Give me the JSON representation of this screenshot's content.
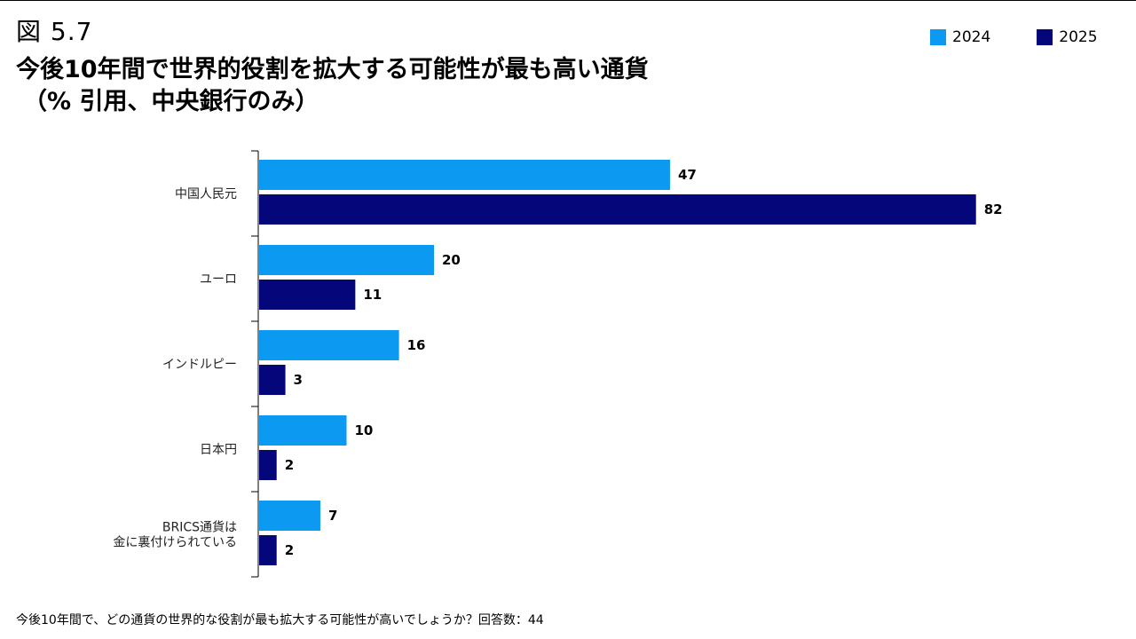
{
  "figure_label": "図 5.7",
  "title_line1": "今後10年間で世界的役割を拡大する可能性が最も高い通貨",
  "title_line2": "（% 引用、中央銀行のみ）",
  "footnote": "今後10年間で、どの通貨の世界的な役割が最も拡大する可能性が高いでしょうか？回答数：44",
  "colors": {
    "s2024": "#0B99F2",
    "s2025": "#04067A"
  },
  "chart_data": {
    "type": "bar",
    "orientation": "horizontal",
    "categories": [
      [
        "中国人民元"
      ],
      [
        "ユーロ"
      ],
      [
        "インドルピー"
      ],
      [
        "日本円"
      ],
      [
        "BRICS通貨は",
        "金に裏付けられている"
      ]
    ],
    "series": [
      {
        "name": "2024",
        "values": [
          47,
          20,
          16,
          10,
          7
        ]
      },
      {
        "name": "2025",
        "values": [
          82,
          11,
          3,
          2,
          2
        ]
      }
    ],
    "legend_position": "top-right",
    "grid": false
  }
}
